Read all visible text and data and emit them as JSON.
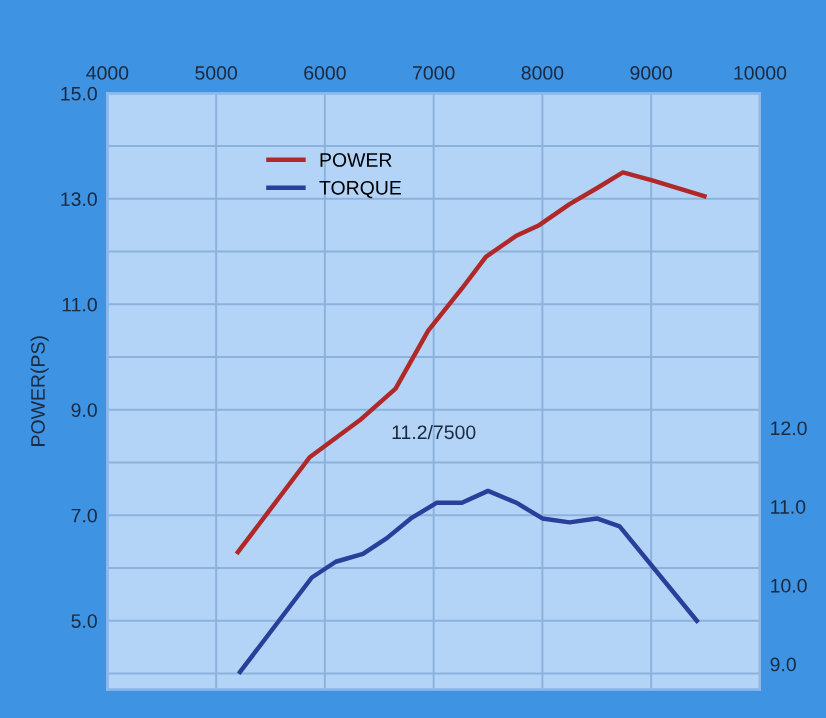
{
  "chart_data": {
    "type": "line",
    "ylabel": "POWER(PS)",
    "xlim": [
      4000,
      10000
    ],
    "xticks": [
      4000,
      5000,
      6000,
      7000,
      8000,
      9000,
      10000
    ],
    "ylim": [
      3.7,
      15
    ],
    "yticks": [
      {
        "value": 4,
        "label": null
      },
      {
        "value": 5,
        "label": "5.0"
      },
      {
        "value": 6,
        "label": null
      },
      {
        "value": 7,
        "label": "7.0"
      },
      {
        "value": 8,
        "label": null
      },
      {
        "value": 9,
        "label": "9.0"
      },
      {
        "value": 10,
        "label": null
      },
      {
        "value": 11,
        "label": "11.0"
      },
      {
        "value": 12,
        "label": null
      },
      {
        "value": 13,
        "label": "13.0"
      },
      {
        "value": 14,
        "label": null
      },
      {
        "value": 15,
        "label": "15.0"
      }
    ],
    "y2lim": [
      8.68,
      16.25
    ],
    "y2ticks": [
      {
        "value": 9,
        "label": "9.0"
      },
      {
        "value": 10,
        "label": "10.0"
      },
      {
        "value": 11,
        "label": "11.0"
      },
      {
        "value": 12,
        "label": "12.0"
      }
    ],
    "grid": true,
    "legend": "top left",
    "annotations": [
      "11.2/7500"
    ],
    "series": [
      {
        "name": "POWER",
        "color": "#b02828",
        "x": [
          5200,
          5860,
          6320,
          6650,
          6950,
          7260,
          7480,
          7760,
          7970,
          8250,
          8500,
          8740,
          9010,
          9490
        ],
        "values": [
          6.3,
          8.1,
          8.8,
          9.4,
          10.5,
          11.3,
          11.9,
          12.3,
          12.5,
          12.9,
          13.2,
          13.5,
          13.35,
          13.05
        ]
      },
      {
        "name": "TORQUE",
        "color": "#2a3f9a",
        "axis": "y2",
        "x": [
          5220,
          5880,
          6100,
          6350,
          6570,
          6790,
          7030,
          7260,
          7500,
          7760,
          8000,
          8250,
          8500,
          8710,
          9420
        ],
        "values": [
          8.9,
          10.1,
          10.3,
          10.4,
          10.6,
          10.85,
          11.05,
          11.05,
          11.2,
          11.05,
          10.85,
          10.8,
          10.85,
          10.75,
          9.55
        ]
      }
    ]
  }
}
